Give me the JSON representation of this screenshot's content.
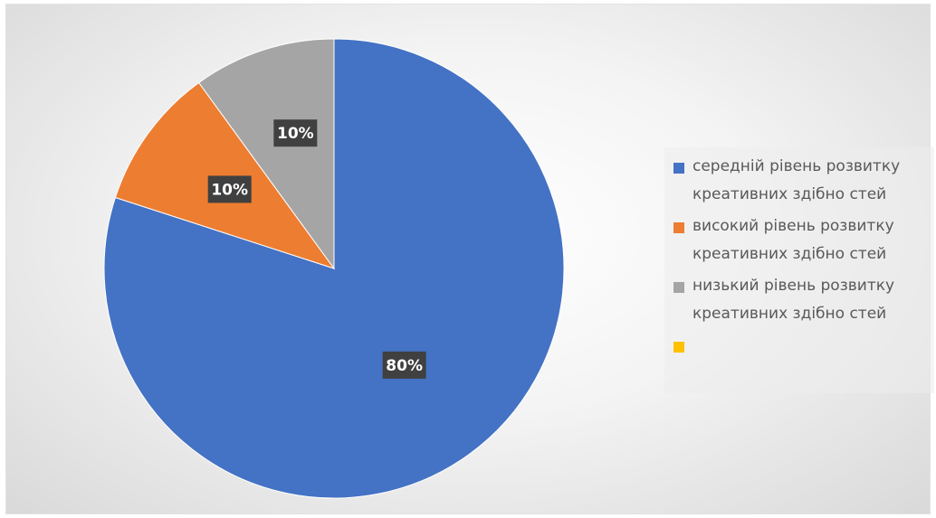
{
  "chart_data": {
    "type": "pie",
    "categories": [
      "середній рівень розвитку креативних здібно стей",
      "високий рівень розвитку креативних здібно стей",
      "низький рівень розвитку креативних здібно стей",
      ""
    ],
    "values": [
      80,
      10,
      10,
      0
    ],
    "data_labels": [
      "80%",
      "10%",
      "10%",
      ""
    ],
    "colors": [
      "#4472c4",
      "#ed7d31",
      "#a5a5a5",
      "#ffc000"
    ],
    "legend_position": "right",
    "start_angle": "top, clockwise"
  },
  "legend": {
    "items": [
      {
        "label": "середній рівень розвитку\nкреативних здібно стей",
        "color": "#4472c4"
      },
      {
        "label": "високий рівень розвитку\nкреативних здібно стей",
        "color": "#ed7d31"
      },
      {
        "label": "низький рівень розвитку\nкреативних здібно стей",
        "color": "#a5a5a5"
      },
      {
        "label": "",
        "color": "#ffc000"
      }
    ]
  }
}
